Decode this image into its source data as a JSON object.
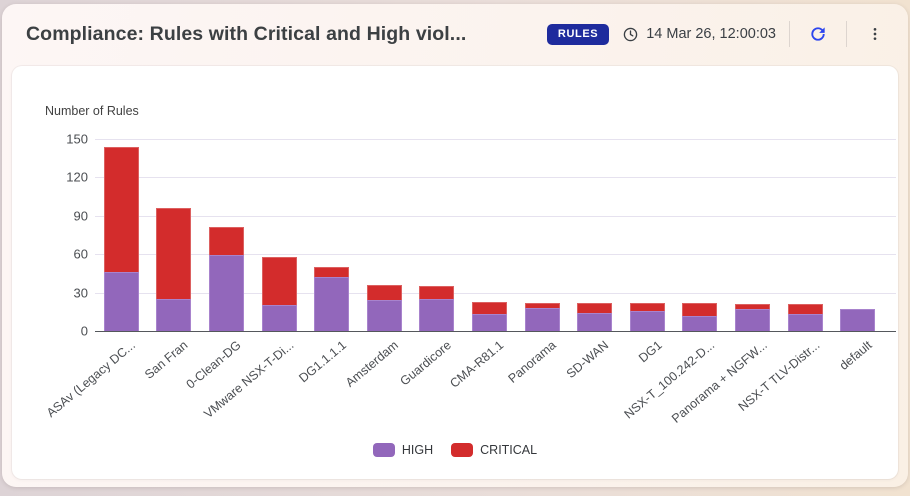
{
  "header": {
    "title": "Compliance: Rules with Critical and High viol...",
    "badge": "RULES",
    "timestamp": "14 Mar 26, 12:00:03"
  },
  "chart_data": {
    "type": "bar",
    "stacked": true,
    "ylabel": "Number of Rules",
    "ylim": [
      0,
      150
    ],
    "yticks": [
      0,
      30,
      60,
      90,
      120,
      150
    ],
    "grid": true,
    "legend_position": "bottom",
    "categories": [
      "ASAv (Legacy DC...",
      "San Fran",
      "0-Clean-DG",
      "VMware NSX-T-Di...",
      "DG1.1.1.1",
      "Amsterdam",
      "Guardicore",
      "CMA-R81.1",
      "Panorama",
      "SD-WAN",
      "DG1",
      "NSX-T_100.242-D...",
      "Panorama + NGFW...",
      "NSX-T TLV-Distr...",
      "default"
    ],
    "series": [
      {
        "name": "HIGH",
        "color": "#9267bb",
        "values": [
          46,
          25,
          59,
          20,
          42,
          24,
          25,
          13,
          18,
          14,
          16,
          12,
          17,
          13,
          17
        ]
      },
      {
        "name": "CRITICAL",
        "color": "#d32c2c",
        "values": [
          98,
          71,
          22,
          38,
          8,
          12,
          10,
          10,
          4,
          8,
          6,
          10,
          4,
          8,
          0
        ]
      }
    ],
    "totals": [
      144,
      96,
      81,
      58,
      50,
      36,
      35,
      23,
      22,
      22,
      22,
      22,
      21,
      21,
      17
    ]
  },
  "colors": {
    "high": "#9267bb",
    "critical": "#d32c2c",
    "badge_bg": "#1e2b9d",
    "refresh_blue": "#2d46ee",
    "grid_line": "#e6e2ef",
    "axis_line": "#55585c",
    "icon_gray": "#3a3f44"
  }
}
